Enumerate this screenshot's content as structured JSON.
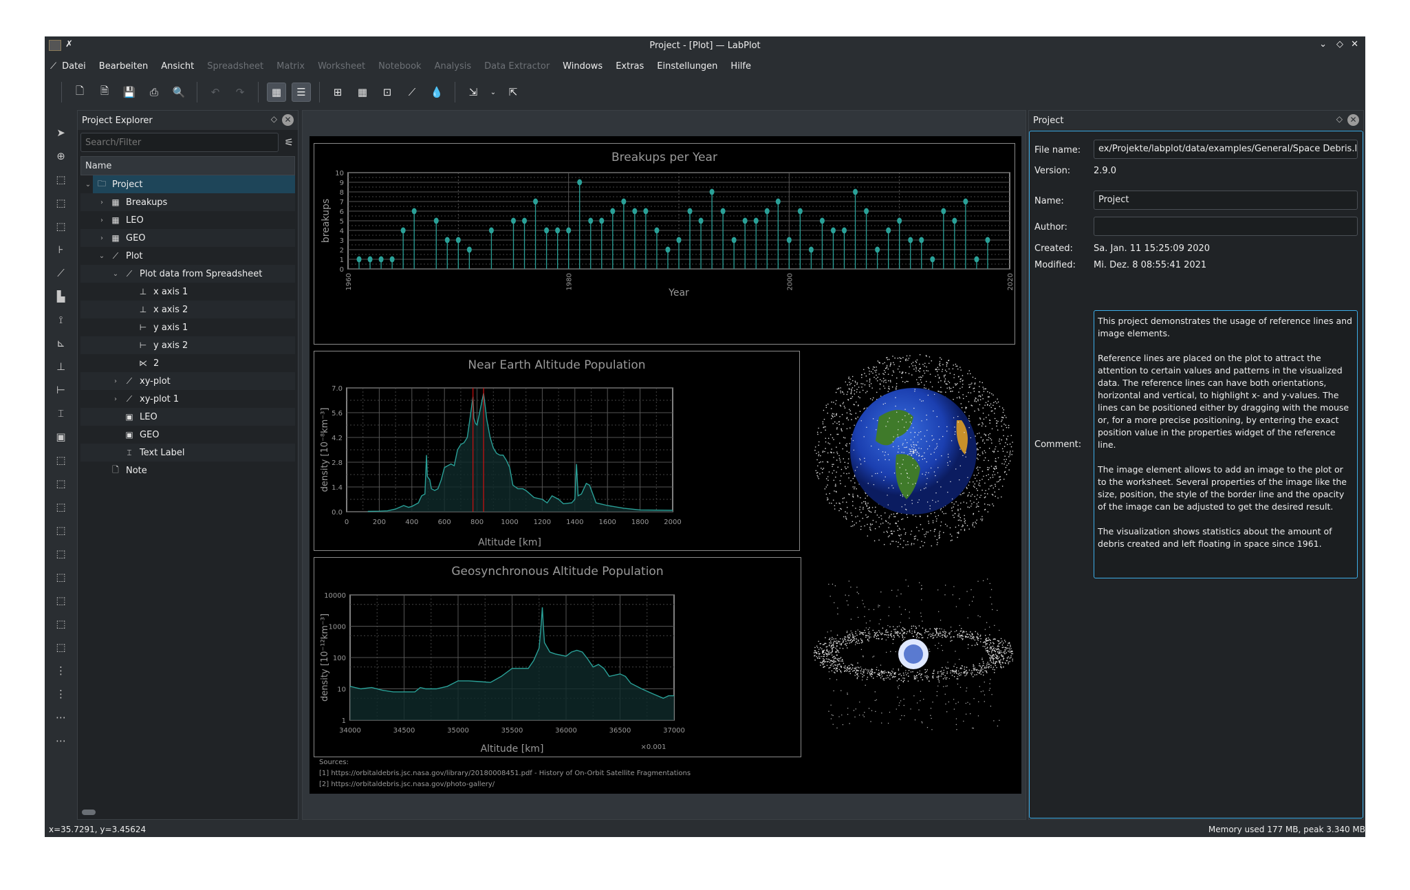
{
  "window": {
    "title": "Project - [Plot] — LabPlot"
  },
  "menu": [
    {
      "label": "Datei",
      "enabled": true
    },
    {
      "label": "Bearbeiten",
      "enabled": true
    },
    {
      "label": "Ansicht",
      "enabled": true
    },
    {
      "label": "Spreadsheet",
      "enabled": false
    },
    {
      "label": "Matrix",
      "enabled": false
    },
    {
      "label": "Worksheet",
      "enabled": false
    },
    {
      "label": "Notebook",
      "enabled": false
    },
    {
      "label": "Analysis",
      "enabled": false
    },
    {
      "label": "Data Extractor",
      "enabled": false
    },
    {
      "label": "Windows",
      "enabled": true
    },
    {
      "label": "Extras",
      "enabled": true
    },
    {
      "label": "Einstellungen",
      "enabled": true
    },
    {
      "label": "Hilfe",
      "enabled": true
    }
  ],
  "explorer": {
    "title": "Project Explorer",
    "search_placeholder": "Search/Filter",
    "column": "Name",
    "items": [
      {
        "label": "Project",
        "level": 0,
        "expander": "open",
        "icon": "folder-icon",
        "selected": true
      },
      {
        "label": "Breakups",
        "level": 1,
        "expander": "closed",
        "icon": "spreadsheet-icon"
      },
      {
        "label": "LEO",
        "level": 1,
        "expander": "closed",
        "icon": "spreadsheet-icon"
      },
      {
        "label": "GEO",
        "level": 1,
        "expander": "closed",
        "icon": "spreadsheet-icon"
      },
      {
        "label": "Plot",
        "level": 1,
        "expander": "open",
        "icon": "worksheet-icon"
      },
      {
        "label": "Plot data from Spreadsheet",
        "level": 2,
        "expander": "open",
        "icon": "plot-area-icon"
      },
      {
        "label": "x axis 1",
        "level": 3,
        "expander": "",
        "icon": "x-axis-icon"
      },
      {
        "label": "x axis 2",
        "level": 3,
        "expander": "",
        "icon": "x-axis-icon"
      },
      {
        "label": "y axis 1",
        "level": 3,
        "expander": "",
        "icon": "y-axis-icon"
      },
      {
        "label": "y axis 2",
        "level": 3,
        "expander": "",
        "icon": "y-axis-icon"
      },
      {
        "label": "2",
        "level": 3,
        "expander": "",
        "icon": "xy-curve-icon"
      },
      {
        "label": "xy-plot",
        "level": 2,
        "expander": "closed",
        "icon": "plot-area-icon"
      },
      {
        "label": "xy-plot 1",
        "level": 2,
        "expander": "closed",
        "icon": "plot-area-icon"
      },
      {
        "label": "LEO",
        "level": 2,
        "expander": "",
        "icon": "image-icon"
      },
      {
        "label": "GEO",
        "level": 2,
        "expander": "",
        "icon": "image-icon"
      },
      {
        "label": "Text Label",
        "level": 2,
        "expander": "",
        "icon": "text-label-icon"
      },
      {
        "label": "Note",
        "level": 1,
        "expander": "",
        "icon": "note-icon"
      }
    ]
  },
  "properties": {
    "title": "Project",
    "file_name_label": "File name:",
    "file_name": "ex/Projekte/labplot/data/examples/General/Space Debris.lml",
    "version_label": "Version:",
    "version": "2.9.0",
    "name_label": "Name:",
    "name": "Project",
    "author_label": "Author:",
    "author": "",
    "created_label": "Created:",
    "created": "Sa. Jan. 11 15:25:09 2020",
    "modified_label": "Modified:",
    "modified": "Mi. Dez. 8 08:55:41 2021",
    "comment_label": "Comment:",
    "comment": "This project demonstrates the usage of reference lines and image elements.\n\nReference lines are placed on the plot to attract the attention to certain values and patterns in the visualized data. The reference lines can have both orientations, horizontal and vertical, to highlight x- and y-values. The lines can be positioned either by dragging with the mouse or, for a more precise positioning, by entering the exact position value in the properties widget of the reference line.\n\nThe image element allows to add an image to the plot or to the worksheet. Several properties of the image like the size, position, the style of the border line and the opacity of the image can be adjusted to get the desired result.\n\nThe visualization shows statistics about the amount of debris created and left floating in space since 1961."
  },
  "sources": {
    "heading": "Sources:",
    "items": [
      "[1] https://orbitaldebris.jsc.nasa.gov/library/20180008451.pdf  - History of On-Orbit Satellite Fragmentations",
      "[2] https://orbitaldebris.jsc.nasa.gov/photo-gallery/"
    ]
  },
  "status": {
    "coords": "x=35.7291, y=3.45624",
    "memory": "Memory used 177 MB, peak 3.340 MB"
  },
  "colors": {
    "curve": "#2aa198",
    "reference_line": "#d01010",
    "background": "#000000",
    "accent": "#3daee9"
  },
  "chart_data": [
    {
      "type": "bar",
      "style": "lollipop",
      "title": "Breakups per Year",
      "xlabel": "Year",
      "ylabel": "breakups",
      "xlim": [
        1960,
        2020
      ],
      "ylim": [
        0,
        10
      ],
      "xticks": [
        "1960",
        "1980",
        "2000",
        "2020"
      ],
      "yticks": [
        "0",
        "1",
        "2",
        "3",
        "4",
        "5",
        "6",
        "7",
        "8",
        "9",
        "10"
      ],
      "grid": true,
      "x": [
        1961,
        1962,
        1963,
        1964,
        1965,
        1966,
        1968,
        1969,
        1970,
        1971,
        1973,
        1975,
        1976,
        1977,
        1978,
        1979,
        1980,
        1981,
        1982,
        1983,
        1984,
        1985,
        1986,
        1987,
        1988,
        1989,
        1990,
        1991,
        1992,
        1993,
        1994,
        1995,
        1996,
        1997,
        1998,
        1999,
        2000,
        2001,
        2002,
        2003,
        2004,
        2005,
        2006,
        2007,
        2008,
        2009,
        2010,
        2011,
        2012,
        2013,
        2014,
        2015,
        2016,
        2017,
        2018
      ],
      "values": [
        1,
        1,
        1,
        1,
        4,
        6,
        5,
        3,
        3,
        2,
        4,
        5,
        5,
        7,
        4,
        4,
        4,
        9,
        5,
        5,
        6,
        7,
        6,
        6,
        4,
        2,
        3,
        6,
        5,
        8,
        6,
        3,
        5,
        5,
        6,
        7,
        3,
        6,
        2,
        5,
        4,
        4,
        8,
        6,
        2,
        4,
        5,
        3,
        3,
        1,
        6,
        5,
        7,
        1,
        3
      ]
    },
    {
      "type": "area",
      "title": "Near Earth Altitude Population",
      "xlabel": "Altitude [km]",
      "ylabel": "density [10⁻⁸km⁻³]",
      "xlim": [
        0,
        2000
      ],
      "ylim": [
        0,
        7
      ],
      "xticks": [
        "0",
        "200",
        "400",
        "600",
        "800",
        "1000",
        "1200",
        "1400",
        "1600",
        "1800",
        "2000"
      ],
      "yticks": [
        "0.0",
        "1.4",
        "2.8",
        "4.2",
        "5.6",
        "7.0"
      ],
      "grid": true,
      "reference_lines_x": [
        775,
        840
      ],
      "points": [
        [
          130,
          0.02
        ],
        [
          200,
          0.03
        ],
        [
          250,
          0.05
        ],
        [
          300,
          0.15
        ],
        [
          350,
          0.35
        ],
        [
          380,
          0.25
        ],
        [
          400,
          0.3
        ],
        [
          440,
          0.5
        ],
        [
          460,
          0.9
        ],
        [
          480,
          1.0
        ],
        [
          490,
          3.2
        ],
        [
          495,
          2.0
        ],
        [
          510,
          1.8
        ],
        [
          520,
          1.3
        ],
        [
          540,
          1.2
        ],
        [
          560,
          1.3
        ],
        [
          580,
          1.8
        ],
        [
          600,
          2.5
        ],
        [
          620,
          2.6
        ],
        [
          640,
          2.7
        ],
        [
          660,
          2.6
        ],
        [
          680,
          3.5
        ],
        [
          700,
          3.8
        ],
        [
          720,
          3.9
        ],
        [
          740,
          4.2
        ],
        [
          760,
          5.5
        ],
        [
          775,
          6.5
        ],
        [
          780,
          5.3
        ],
        [
          790,
          5.0
        ],
        [
          800,
          4.9
        ],
        [
          820,
          5.8
        ],
        [
          840,
          6.7
        ],
        [
          860,
          5.2
        ],
        [
          880,
          4.2
        ],
        [
          900,
          3.6
        ],
        [
          920,
          3.3
        ],
        [
          940,
          3.2
        ],
        [
          960,
          3.2
        ],
        [
          980,
          2.9
        ],
        [
          1000,
          2.5
        ],
        [
          1020,
          1.5
        ],
        [
          1050,
          1.3
        ],
        [
          1080,
          1.3
        ],
        [
          1100,
          1.2
        ],
        [
          1150,
          0.8
        ],
        [
          1200,
          0.7
        ],
        [
          1230,
          0.5
        ],
        [
          1260,
          0.9
        ],
        [
          1300,
          0.7
        ],
        [
          1330,
          0.45
        ],
        [
          1380,
          0.5
        ],
        [
          1400,
          0.7
        ],
        [
          1410,
          2.7
        ],
        [
          1420,
          0.9
        ],
        [
          1440,
          1.0
        ],
        [
          1470,
          1.6
        ],
        [
          1490,
          1.5
        ],
        [
          1510,
          1.0
        ],
        [
          1530,
          0.5
        ],
        [
          1600,
          0.35
        ],
        [
          1700,
          0.2
        ],
        [
          1800,
          0.1
        ],
        [
          2000,
          0.08
        ]
      ]
    },
    {
      "type": "area",
      "title": "Geosynchronous Altitude Population",
      "xlabel": "Altitude [km]",
      "ylabel": "density [10⁻¹²km⁻³]",
      "xlim": [
        34000,
        37000
      ],
      "ylim": [
        1,
        10000
      ],
      "yscale": "log",
      "xticks": [
        "34000",
        "34500",
        "35000",
        "35500",
        "36000",
        "36500",
        "37000"
      ],
      "yticks": [
        "1",
        "10",
        "100",
        "1000",
        "10000"
      ],
      "xscale_note": "×0.001",
      "grid": true,
      "points": [
        [
          34000,
          12
        ],
        [
          34100,
          10
        ],
        [
          34200,
          11
        ],
        [
          34300,
          9
        ],
        [
          34400,
          8
        ],
        [
          34500,
          8
        ],
        [
          34600,
          8
        ],
        [
          34650,
          11
        ],
        [
          34700,
          10
        ],
        [
          34800,
          10
        ],
        [
          34900,
          12
        ],
        [
          35000,
          18
        ],
        [
          35100,
          18
        ],
        [
          35200,
          17
        ],
        [
          35300,
          16
        ],
        [
          35400,
          25
        ],
        [
          35500,
          45
        ],
        [
          35600,
          45
        ],
        [
          35650,
          45
        ],
        [
          35700,
          80
        ],
        [
          35750,
          200
        ],
        [
          35770,
          1200
        ],
        [
          35780,
          4000
        ],
        [
          35790,
          1000
        ],
        [
          35800,
          300
        ],
        [
          35850,
          150
        ],
        [
          35900,
          130
        ],
        [
          36000,
          110
        ],
        [
          36050,
          150
        ],
        [
          36100,
          170
        ],
        [
          36150,
          150
        ],
        [
          36200,
          90
        ],
        [
          36250,
          50
        ],
        [
          36300,
          60
        ],
        [
          36350,
          45
        ],
        [
          36400,
          25
        ],
        [
          36500,
          30
        ],
        [
          36550,
          25
        ],
        [
          36600,
          15
        ],
        [
          36700,
          10
        ],
        [
          36800,
          7
        ],
        [
          36900,
          5
        ],
        [
          36950,
          6
        ],
        [
          37000,
          6
        ]
      ]
    }
  ]
}
